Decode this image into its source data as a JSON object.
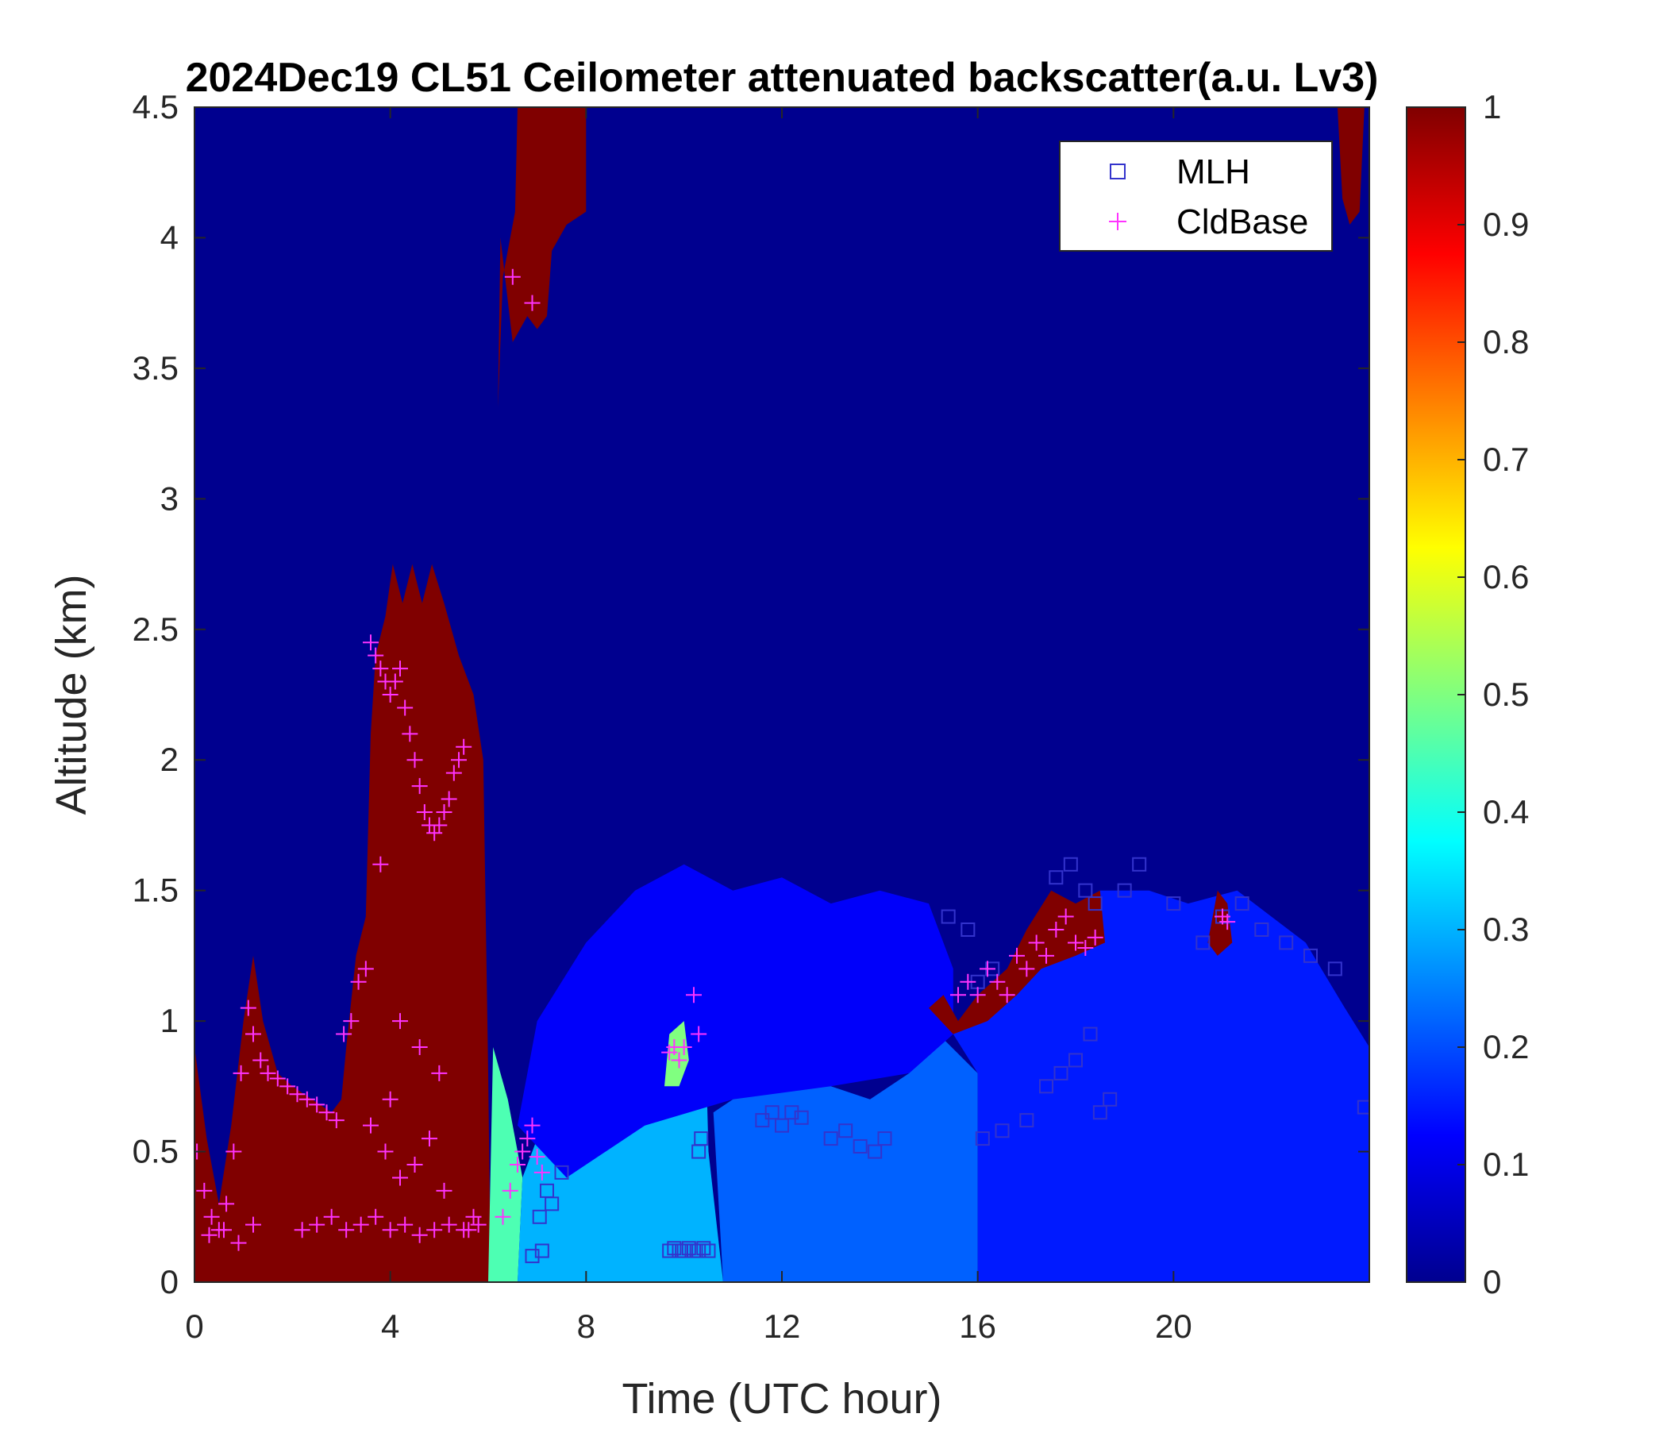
{
  "chart_data": {
    "type": "heatmap",
    "title": "2024Dec19 CL51 Ceilometer attenuated backscatter(a.u. Lv3)",
    "xlabel": "Time (UTC hour)",
    "ylabel": "Altitude (km)",
    "xlim": [
      0,
      24
    ],
    "ylim": [
      0,
      4.5
    ],
    "xticks": [
      0,
      4,
      8,
      12,
      16,
      20
    ],
    "xtick_labels": [
      "0",
      "4",
      "8",
      "12",
      "16",
      "20"
    ],
    "yticks": [
      0,
      0.5,
      1,
      1.5,
      2,
      2.5,
      3,
      3.5,
      4,
      4.5
    ],
    "ytick_labels": [
      "0",
      "0.5",
      "1",
      "1.5",
      "2",
      "2.5",
      "3",
      "3.5",
      "4",
      "4.5"
    ],
    "colorbar": {
      "colormap": "jet",
      "limits": [
        0,
        1
      ],
      "ticks": [
        0,
        0.1,
        0.2,
        0.3,
        0.4,
        0.5,
        0.6,
        0.7,
        0.8,
        0.9,
        1
      ],
      "tick_labels": [
        "0",
        "0.1",
        "0.2",
        "0.3",
        "0.4",
        "0.5",
        "0.6",
        "0.7",
        "0.8",
        "0.9",
        "1"
      ]
    },
    "grid": false,
    "legend": {
      "placement": "top-right",
      "entries": [
        {
          "name": "MLH",
          "marker": "square",
          "color": "#3333cc"
        },
        {
          "name": "CldBase",
          "marker": "plus",
          "color": "#ff33ff"
        }
      ]
    },
    "regions": [
      {
        "value": 1.0,
        "points": [
          [
            0,
            0
          ],
          [
            0,
            0.9
          ],
          [
            0.25,
            0.55
          ],
          [
            0.5,
            0.3
          ],
          [
            0.75,
            0.6
          ],
          [
            1.0,
            1.0
          ],
          [
            1.2,
            1.25
          ],
          [
            1.4,
            1.0
          ],
          [
            1.7,
            0.8
          ],
          [
            2.0,
            0.75
          ],
          [
            2.4,
            0.7
          ],
          [
            2.8,
            0.65
          ],
          [
            3.0,
            0.7
          ],
          [
            3.1,
            0.9
          ],
          [
            3.3,
            1.25
          ],
          [
            3.5,
            1.4
          ],
          [
            3.6,
            2.1
          ],
          [
            3.7,
            2.4
          ],
          [
            3.9,
            2.55
          ],
          [
            4.05,
            2.75
          ],
          [
            4.25,
            2.6
          ],
          [
            4.45,
            2.75
          ],
          [
            4.65,
            2.6
          ],
          [
            4.85,
            2.75
          ],
          [
            5.1,
            2.6
          ],
          [
            5.4,
            2.4
          ],
          [
            5.7,
            2.25
          ],
          [
            5.9,
            2.0
          ],
          [
            6.0,
            0.8
          ],
          [
            6.05,
            0
          ],
          [
            0,
            0
          ]
        ]
      },
      {
        "value": 1.0,
        "points": [
          [
            6.2,
            3.35
          ],
          [
            6.25,
            4.0
          ],
          [
            6.5,
            3.6
          ],
          [
            6.8,
            3.7
          ],
          [
            7.0,
            3.65
          ],
          [
            7.2,
            3.7
          ],
          [
            7.3,
            3.95
          ],
          [
            7.6,
            4.05
          ],
          [
            8.0,
            4.1
          ],
          [
            8.0,
            4.5
          ],
          [
            6.6,
            4.5
          ],
          [
            6.55,
            4.1
          ],
          [
            6.3,
            3.85
          ],
          [
            6.2,
            3.35
          ]
        ]
      },
      {
        "value": 1.0,
        "points": [
          [
            23.35,
            4.5
          ],
          [
            23.45,
            4.15
          ],
          [
            23.6,
            4.05
          ],
          [
            23.8,
            4.1
          ],
          [
            23.9,
            4.5
          ],
          [
            23.35,
            4.5
          ]
        ]
      },
      {
        "value": 0.45,
        "points": [
          [
            6.0,
            0
          ],
          [
            6.6,
            0
          ],
          [
            6.7,
            0.4
          ],
          [
            6.4,
            0.7
          ],
          [
            6.1,
            0.9
          ],
          [
            6.0,
            0
          ]
        ]
      },
      {
        "value": 0.3,
        "points": [
          [
            6.6,
            0
          ],
          [
            10.8,
            0
          ],
          [
            10.5,
            0.5
          ],
          [
            10.4,
            1.2
          ],
          [
            9.8,
            1.0
          ],
          [
            9.5,
            0.8
          ],
          [
            9.2,
            0.6
          ],
          [
            8.6,
            0.65
          ],
          [
            8.2,
            0.5
          ],
          [
            7.6,
            0.4
          ],
          [
            7.0,
            0.55
          ],
          [
            6.7,
            0.4
          ],
          [
            6.6,
            0
          ]
        ]
      },
      {
        "value": 0.22,
        "points": [
          [
            10.8,
            0
          ],
          [
            16.0,
            0
          ],
          [
            16.0,
            0.8
          ],
          [
            15.2,
            0.95
          ],
          [
            14.6,
            0.8
          ],
          [
            13.8,
            0.7
          ],
          [
            13.0,
            0.75
          ],
          [
            12.2,
            0.8
          ],
          [
            11.4,
            0.75
          ],
          [
            10.6,
            0.65
          ],
          [
            10.8,
            0
          ]
        ]
      },
      {
        "value": 0.15,
        "points": [
          [
            15.5,
            0.95
          ],
          [
            16.0,
            1.0
          ],
          [
            17.0,
            1.2
          ],
          [
            17.8,
            1.4
          ],
          [
            18.5,
            1.5
          ],
          [
            19.5,
            1.5
          ],
          [
            20.3,
            1.45
          ],
          [
            21.3,
            1.5
          ],
          [
            22.0,
            1.4
          ],
          [
            22.7,
            1.3
          ],
          [
            23.5,
            1.05
          ],
          [
            24,
            0.9
          ],
          [
            24,
            0
          ],
          [
            16.0,
            0
          ],
          [
            16.0,
            0.8
          ],
          [
            15.5,
            0.95
          ]
        ]
      },
      {
        "value": 0.12,
        "points": [
          [
            6.6,
            0.6
          ],
          [
            7.0,
            1.0
          ],
          [
            8.0,
            1.3
          ],
          [
            9.0,
            1.5
          ],
          [
            10.0,
            1.6
          ],
          [
            11.0,
            1.5
          ],
          [
            12.0,
            1.55
          ],
          [
            13.0,
            1.45
          ],
          [
            14.0,
            1.5
          ],
          [
            15.0,
            1.45
          ],
          [
            15.5,
            1.2
          ],
          [
            15.5,
            0.95
          ],
          [
            14.6,
            0.8
          ],
          [
            13.0,
            0.75
          ],
          [
            11.0,
            0.7
          ],
          [
            9.2,
            0.6
          ],
          [
            7.6,
            0.4
          ],
          [
            6.6,
            0.6
          ]
        ]
      },
      {
        "value": 1.0,
        "points": [
          [
            15.0,
            1.05
          ],
          [
            15.3,
            1.1
          ],
          [
            15.6,
            1.0
          ],
          [
            16.0,
            1.1
          ],
          [
            16.6,
            1.2
          ],
          [
            17.0,
            1.35
          ],
          [
            17.5,
            1.5
          ],
          [
            18.0,
            1.45
          ],
          [
            18.5,
            1.5
          ],
          [
            18.6,
            1.3
          ],
          [
            18.0,
            1.25
          ],
          [
            17.3,
            1.2
          ],
          [
            16.8,
            1.1
          ],
          [
            16.2,
            1.0
          ],
          [
            15.5,
            0.95
          ],
          [
            15.0,
            1.05
          ]
        ]
      },
      {
        "value": 1.0,
        "points": [
          [
            20.7,
            1.3
          ],
          [
            20.9,
            1.5
          ],
          [
            21.1,
            1.45
          ],
          [
            21.2,
            1.3
          ],
          [
            20.9,
            1.25
          ],
          [
            20.7,
            1.3
          ]
        ]
      },
      {
        "value": 0.5,
        "points": [
          [
            9.6,
            0.75
          ],
          [
            9.7,
            0.95
          ],
          [
            10.0,
            1.0
          ],
          [
            10.1,
            0.85
          ],
          [
            9.9,
            0.75
          ],
          [
            9.6,
            0.75
          ]
        ]
      }
    ],
    "series": [
      {
        "name": "MLH",
        "marker": "square",
        "color": "#3333cc",
        "x": [
          6.9,
          7.1,
          7.3,
          7.5,
          9.7,
          9.8,
          9.9,
          10.0,
          10.1,
          10.2,
          10.3,
          10.4,
          10.5,
          10.3,
          10.35,
          7.05,
          7.2,
          11.6,
          11.8,
          12.0,
          12.2,
          12.4,
          13.0,
          13.3,
          13.6,
          13.9,
          14.1,
          15.4,
          15.8,
          16.1,
          16.5,
          17.0,
          17.4,
          17.7,
          18.0,
          18.3,
          18.5,
          18.7,
          19.0,
          19.3,
          20.0,
          20.6,
          21.0,
          21.4,
          21.8,
          22.3,
          22.8,
          23.3,
          23.9,
          17.6,
          17.9,
          18.2,
          18.4,
          16.0,
          16.3
        ],
        "y": [
          0.1,
          0.12,
          0.3,
          0.42,
          0.12,
          0.13,
          0.12,
          0.12,
          0.13,
          0.12,
          0.12,
          0.13,
          0.12,
          0.5,
          0.55,
          0.25,
          0.35,
          0.62,
          0.65,
          0.6,
          0.65,
          0.63,
          0.55,
          0.58,
          0.52,
          0.5,
          0.55,
          1.4,
          1.35,
          0.55,
          0.58,
          0.62,
          0.75,
          0.8,
          0.85,
          0.95,
          0.65,
          0.7,
          1.5,
          1.6,
          1.45,
          1.3,
          1.4,
          1.45,
          1.35,
          1.3,
          1.25,
          1.2,
          0.67,
          1.55,
          1.6,
          1.5,
          1.45,
          1.15,
          1.2
        ],
        "show_in_legend": true
      },
      {
        "name": "CldBase",
        "marker": "plus",
        "color": "#ff33ff",
        "x": [
          0.05,
          0.2,
          0.35,
          0.5,
          0.65,
          0.8,
          0.95,
          1.1,
          1.2,
          1.35,
          1.5,
          1.7,
          1.9,
          2.1,
          2.3,
          2.5,
          2.7,
          2.9,
          3.05,
          3.2,
          3.35,
          3.5,
          3.6,
          3.7,
          3.8,
          3.9,
          4.0,
          4.1,
          4.2,
          4.3,
          4.4,
          4.5,
          4.6,
          4.7,
          4.8,
          4.9,
          5.0,
          5.1,
          5.2,
          5.3,
          5.4,
          5.5,
          5.6,
          5.7,
          5.8,
          2.2,
          2.5,
          2.8,
          3.1,
          3.4,
          3.7,
          4.0,
          4.3,
          4.6,
          4.9,
          5.2,
          5.5,
          3.6,
          3.9,
          4.2,
          4.5,
          4.8,
          5.1,
          0.3,
          0.6,
          0.9,
          1.2,
          6.3,
          6.45,
          6.6,
          6.7,
          6.8,
          6.9,
          7.0,
          7.1,
          6.5,
          6.9,
          9.7,
          9.8,
          9.9,
          10.0,
          10.2,
          10.3,
          15.6,
          15.8,
          16.0,
          16.2,
          16.4,
          16.6,
          16.8,
          17.0,
          17.2,
          17.4,
          17.6,
          17.8,
          18.0,
          18.2,
          18.4,
          21.0,
          21.1,
          4.2,
          4.6,
          5.0,
          3.8,
          4.0
        ],
        "y": [
          0.5,
          0.35,
          0.25,
          0.2,
          0.3,
          0.5,
          0.8,
          1.05,
          0.95,
          0.85,
          0.8,
          0.78,
          0.75,
          0.72,
          0.7,
          0.68,
          0.65,
          0.62,
          0.95,
          1.0,
          1.15,
          1.2,
          2.45,
          2.4,
          2.35,
          2.3,
          2.25,
          2.3,
          2.35,
          2.2,
          2.1,
          2.0,
          1.9,
          1.8,
          1.75,
          1.72,
          1.75,
          1.8,
          1.85,
          1.95,
          2.0,
          2.05,
          0.2,
          0.25,
          0.22,
          0.2,
          0.22,
          0.25,
          0.2,
          0.22,
          0.25,
          0.2,
          0.22,
          0.18,
          0.2,
          0.22,
          0.2,
          0.6,
          0.5,
          0.4,
          0.45,
          0.55,
          0.35,
          0.18,
          0.2,
          0.15,
          0.22,
          0.25,
          0.35,
          0.45,
          0.5,
          0.55,
          0.6,
          0.48,
          0.42,
          3.85,
          3.75,
          0.88,
          0.9,
          0.85,
          0.9,
          1.1,
          0.95,
          1.1,
          1.15,
          1.1,
          1.2,
          1.15,
          1.1,
          1.25,
          1.2,
          1.3,
          1.25,
          1.35,
          1.4,
          1.3,
          1.28,
          1.32,
          1.4,
          1.38,
          1.0,
          0.9,
          0.8,
          1.6,
          0.7
        ],
        "show_in_legend": true
      }
    ]
  }
}
